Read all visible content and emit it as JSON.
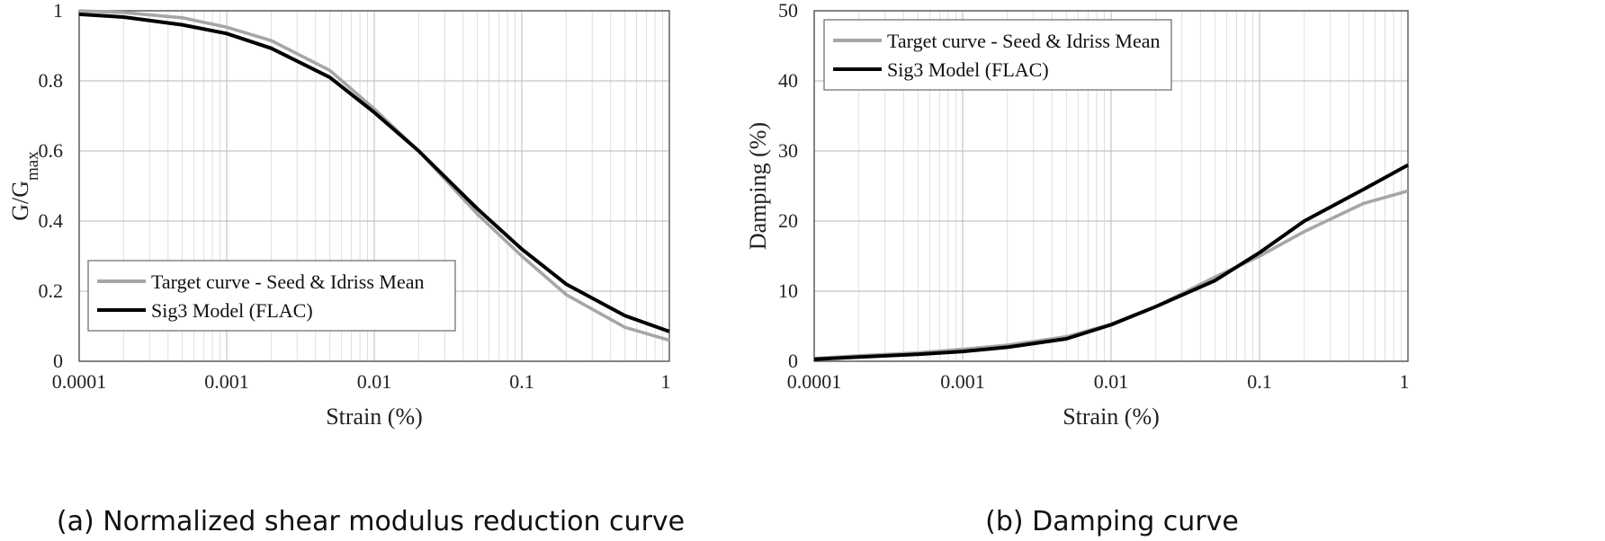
{
  "chart_data": [
    {
      "type": "line",
      "caption": "(a) Normalized shear modulus reduction curve",
      "xlabel": "Strain (%)",
      "ylabel": "G/G",
      "ylabel_sub": "max",
      "x_scale": "log",
      "xlim": [
        0.0001,
        1
      ],
      "ylim": [
        0,
        1
      ],
      "x_ticks": [
        "0.0001",
        "0.001",
        "0.01",
        "0.1",
        "1"
      ],
      "y_ticks": [
        "0",
        "0.2",
        "0.4",
        "0.6",
        "0.8",
        "1"
      ],
      "grid": true,
      "legend_position": "bottom-left",
      "series": [
        {
          "name": "Target curve - Seed & Idriss Mean",
          "color": "#a6a6a6",
          "x": [
            0.0001,
            0.0002,
            0.0005,
            0.001,
            0.002,
            0.005,
            0.01,
            0.02,
            0.05,
            0.1,
            0.2,
            0.5,
            1
          ],
          "y": [
            1.0,
            0.995,
            0.98,
            0.953,
            0.915,
            0.83,
            0.72,
            0.6,
            0.42,
            0.3,
            0.19,
            0.097,
            0.06
          ]
        },
        {
          "name": "Sig3 Model (FLAC)",
          "color": "#000000",
          "x": [
            0.0001,
            0.0002,
            0.0005,
            0.001,
            0.002,
            0.005,
            0.01,
            0.02,
            0.05,
            0.1,
            0.2,
            0.5,
            1
          ],
          "y": [
            0.99,
            0.982,
            0.96,
            0.935,
            0.893,
            0.81,
            0.71,
            0.6,
            0.435,
            0.32,
            0.22,
            0.13,
            0.085
          ]
        }
      ]
    },
    {
      "type": "line",
      "caption": "(b) Damping curve",
      "xlabel": "Strain (%)",
      "ylabel": "Damping (%)",
      "x_scale": "log",
      "xlim": [
        0.0001,
        1
      ],
      "ylim": [
        0,
        50
      ],
      "x_ticks": [
        "0.0001",
        "0.001",
        "0.01",
        "0.1",
        "1"
      ],
      "y_ticks": [
        "0",
        "10",
        "20",
        "30",
        "40",
        "50"
      ],
      "grid": true,
      "legend_position": "top-left",
      "series": [
        {
          "name": "Target curve - Seed & Idriss Mean",
          "color": "#a6a6a6",
          "x": [
            0.0001,
            0.0002,
            0.0005,
            0.001,
            0.002,
            0.005,
            0.01,
            0.02,
            0.05,
            0.1,
            0.2,
            0.5,
            1
          ],
          "y": [
            0.4,
            0.8,
            1.2,
            1.7,
            2.3,
            3.5,
            5.3,
            7.8,
            12.0,
            15.0,
            18.5,
            22.5,
            24.3
          ]
        },
        {
          "name": "Sig3 Model (FLAC)",
          "color": "#000000",
          "x": [
            0.0001,
            0.0002,
            0.0005,
            0.001,
            0.002,
            0.005,
            0.01,
            0.02,
            0.05,
            0.1,
            0.2,
            0.5,
            1
          ],
          "y": [
            0.3,
            0.6,
            1.0,
            1.4,
            2.0,
            3.2,
            5.2,
            7.8,
            11.5,
            15.5,
            20.0,
            24.5,
            28.0
          ]
        }
      ]
    }
  ]
}
